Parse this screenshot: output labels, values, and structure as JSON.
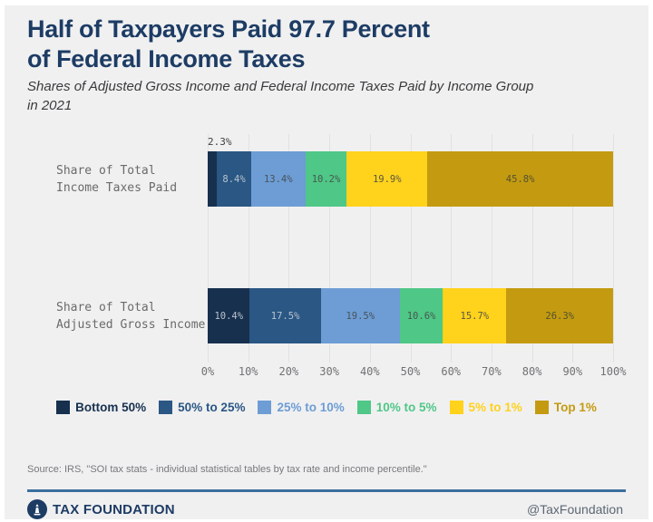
{
  "header": {
    "title": "Half of Taxpayers Paid 97.7 Percent\nof Federal Income Taxes",
    "subtitle": "Shares of Adjusted Gross Income and Federal Income Taxes Paid by Income Group\nin 2021"
  },
  "chart_data": {
    "type": "bar",
    "orientation": "horizontal-stacked",
    "title": "Half of Taxpayers Paid 97.7 Percent of Federal Income Taxes",
    "subtitle": "Shares of Adjusted Gross Income and Federal Income Taxes Paid by Income Group in 2021",
    "categories": [
      "Share of Total\nIncome Taxes Paid",
      "Share of Total\nAdjusted Gross Income"
    ],
    "series": [
      {
        "name": "Bottom 50%",
        "color": "#17304e",
        "label_color": "#b9c3ce",
        "values": [
          2.3,
          10.4
        ]
      },
      {
        "name": "50% to 25%",
        "color": "#2a5784",
        "label_color": "#b9c3ce",
        "values": [
          8.4,
          17.5
        ]
      },
      {
        "name": "25% to 10%",
        "color": "#6d9dd4",
        "label_color": "#49525c",
        "values": [
          13.4,
          19.5
        ]
      },
      {
        "name": "10% to 5%",
        "color": "#4fc787",
        "label_color": "#46584e",
        "values": [
          10.2,
          10.6
        ]
      },
      {
        "name": "5% to 1%",
        "color": "#ffd21c",
        "label_color": "#5a5744",
        "values": [
          19.9,
          15.7
        ]
      },
      {
        "name": "Top 1%",
        "color": "#c49b10",
        "label_color": "#53512f",
        "values": [
          45.8,
          26.3
        ]
      }
    ],
    "x_ticks": [
      "0%",
      "10%",
      "20%",
      "30%",
      "40%",
      "50%",
      "60%",
      "70%",
      "80%",
      "90%",
      "100%"
    ],
    "xlim": [
      0,
      100
    ],
    "grid": true,
    "legend_position": "bottom",
    "annotations": [
      {
        "text": "2.3%",
        "bar": 0,
        "series": 0,
        "position": "above-left"
      }
    ],
    "min_inside_label_value": 4
  },
  "footer": {
    "source": "Source: IRS, \"SOI tax stats - individual statistical tables by tax rate and income percentile.\"",
    "brand": "TAX FOUNDATION",
    "handle": "@TaxFoundation"
  },
  "colors": {
    "background": "#f0f0f1",
    "title": "#1d3c64",
    "rule": "#3c6f9f",
    "gridline": "#e1e1e4"
  }
}
